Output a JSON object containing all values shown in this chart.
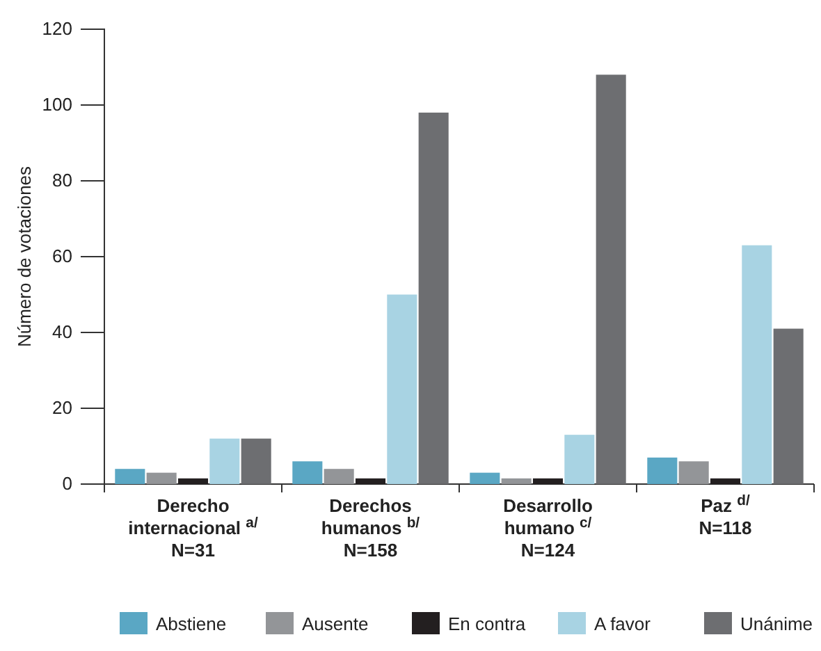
{
  "chart_data": {
    "type": "bar",
    "ylabel": "Número de votaciones",
    "categories": [
      "Derecho\ninternacional $^{a/}$\nN=31",
      "Derechos\nhumanos $^{b/}$\nN=158",
      "Desarrollo\nhumano $^{c/}$\nN=124",
      "Paz $^{d/}$\nN=118"
    ],
    "series": [
      {
        "name": "Abstiene",
        "color": "#5aa7c4",
        "values": [
          4,
          6,
          3,
          7
        ]
      },
      {
        "name": "Ausente",
        "color": "#939598",
        "values": [
          3,
          4,
          1.5,
          6
        ]
      },
      {
        "name": "En contra",
        "color": "#231f20",
        "values": [
          1.5,
          1.5,
          1.5,
          1.5
        ]
      },
      {
        "name": "A favor",
        "color": "#a8d3e3",
        "values": [
          12,
          50,
          13,
          63
        ]
      },
      {
        "name": "Unánime",
        "color": "#6d6e71",
        "values": [
          12,
          98,
          108,
          41
        ]
      }
    ],
    "ylim": [
      0,
      120
    ],
    "yticks": [
      0,
      20,
      40,
      60,
      80,
      100,
      120
    ],
    "grid": false,
    "legend": "bottom"
  }
}
